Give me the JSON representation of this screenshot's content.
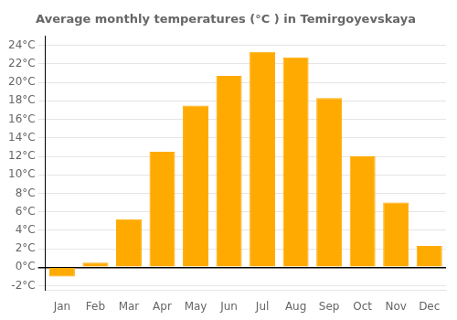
{
  "chart_data": {
    "type": "bar",
    "title": "Average monthly temperatures (°C ) in Temirgoyevskaya",
    "categories": [
      "Jan",
      "Feb",
      "Mar",
      "Apr",
      "May",
      "Jun",
      "Jul",
      "Aug",
      "Sep",
      "Oct",
      "Nov",
      "Dec"
    ],
    "values": [
      -1.0,
      0.5,
      5.2,
      12.5,
      17.5,
      20.7,
      23.3,
      22.7,
      18.3,
      12.0,
      7.0,
      2.3
    ],
    "color": "#FFAA00",
    "ylim": [
      -2.5,
      25
    ],
    "yticks": [
      {
        "value": -2,
        "label": "-2°C"
      },
      {
        "value": 0,
        "label": "0°C"
      },
      {
        "value": 2,
        "label": "2°C"
      },
      {
        "value": 4,
        "label": "4°C"
      },
      {
        "value": 6,
        "label": "6°C"
      },
      {
        "value": 8,
        "label": "8°C"
      },
      {
        "value": 10,
        "label": "10°C"
      },
      {
        "value": 12,
        "label": "12°C"
      },
      {
        "value": 14,
        "label": "14°C"
      },
      {
        "value": 16,
        "label": "16°C"
      },
      {
        "value": 18,
        "label": "18°C"
      },
      {
        "value": 20,
        "label": "20°C"
      },
      {
        "value": 22,
        "label": "22°C"
      },
      {
        "value": 24,
        "label": "24°C"
      }
    ],
    "grid": true
  }
}
